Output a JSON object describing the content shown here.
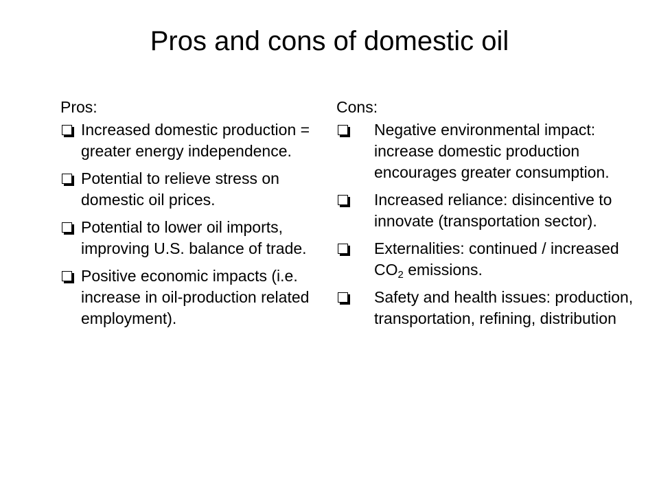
{
  "title": "Pros and cons of domestic oil",
  "pros": {
    "heading": "Pros:",
    "items": [
      "Increased domestic production = greater energy independence.",
      "Potential to relieve stress on domestic oil prices.",
      "Potential to lower oil imports, improving U.S. balance of trade.",
      "Positive economic impacts (i.e. increase in oil-production related employment)."
    ]
  },
  "cons": {
    "heading": "Cons:",
    "items": [
      "Negative environmental impact: increase domestic production encourages greater consumption.",
      "Increased reliance: disincentive to innovate (transportation sector).",
      {
        "before": "Externalities:  continued / increased CO",
        "sub": "2",
        "after": " emissions."
      },
      "Safety and health issues: production, transportation, refining, distribution"
    ]
  }
}
